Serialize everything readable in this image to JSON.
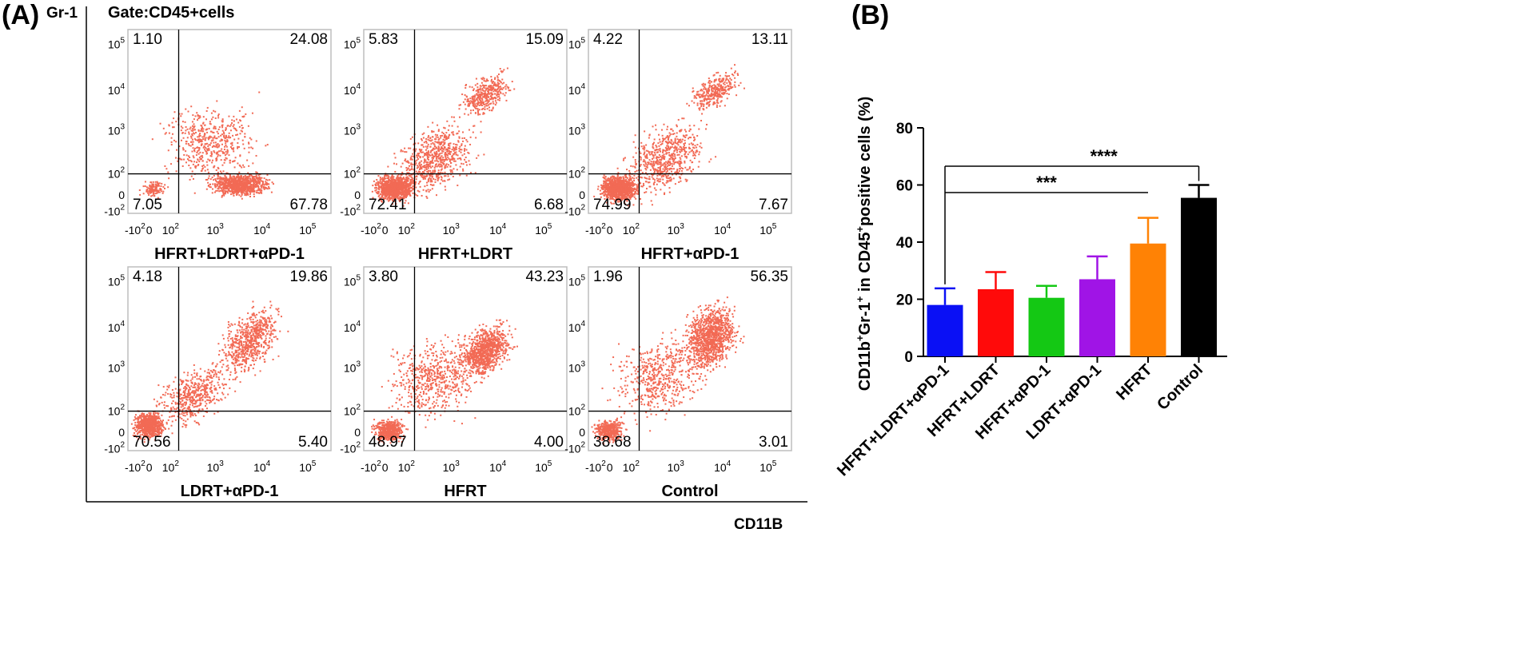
{
  "chart_data": [
    {
      "type": "scatter",
      "panel_label": "(A)",
      "gate_text": "Gate:CD45+cells",
      "ylabel": "Gr-1",
      "xlabel": "CD11B",
      "x_tick_labels": [
        "-10",
        "0",
        "10",
        "10",
        "10",
        "10"
      ],
      "x_tick_exps": [
        "2",
        "",
        "2",
        "3",
        "4",
        "5"
      ],
      "y_tick_labels": [
        "-10",
        "0",
        "10",
        "10",
        "10",
        "10"
      ],
      "y_tick_exps": [
        "2",
        "",
        "2",
        "3",
        "4",
        "5"
      ],
      "plots": [
        {
          "title": "HFRT+LDRT+αPD-1",
          "quadrants": {
            "tl": "1.10",
            "tr": "24.08",
            "bl": "7.05",
            "br": "67.78"
          }
        },
        {
          "title": "HFRT+LDRT",
          "quadrants": {
            "tl": "5.83",
            "tr": "15.09",
            "bl": "72.41",
            "br": "6.68"
          }
        },
        {
          "title": "HFRT+αPD-1",
          "quadrants": {
            "tl": "4.22",
            "tr": "13.11",
            "bl": "74.99",
            "br": "7.67"
          }
        },
        {
          "title": "LDRT+αPD-1",
          "quadrants": {
            "tl": "4.18",
            "tr": "19.86",
            "bl": "70.56",
            "br": "5.40"
          }
        },
        {
          "title": "HFRT",
          "quadrants": {
            "tl": "3.80",
            "tr": "43.23",
            "bl": "48.97",
            "br": "4.00"
          }
        },
        {
          "title": "Control",
          "quadrants": {
            "tl": "1.96",
            "tr": "56.35",
            "bl": "38.68",
            "br": "3.01"
          }
        }
      ],
      "point_color": "#f26a55"
    },
    {
      "type": "bar",
      "panel_label": "(B)",
      "ylabel_main": "CD11b",
      "ylabel_sup1": "+",
      "ylabel_mid": "Gr-1",
      "ylabel_sup2": "+",
      "ylabel_in": " in CD45",
      "ylabel_sup3": "+",
      "ylabel_tail": "positive cells (%)",
      "categories": [
        "HFRT+LDRT+αPD-1",
        "HFRT+LDRT",
        "HFRT+αPD-1",
        "LDRT+αPD-1",
        "HFRT",
        "Control"
      ],
      "values": [
        18,
        23.5,
        20.5,
        27,
        39.5,
        55.5
      ],
      "errors": [
        5.8,
        6,
        4.2,
        8,
        9,
        4.5
      ],
      "colors": [
        "#0a10f5",
        "#ff0a0a",
        "#14c814",
        "#a014e6",
        "#ff8205",
        "#000000"
      ],
      "ylim": [
        0,
        80
      ],
      "yticks": [
        "0",
        "20",
        "40",
        "60",
        "80"
      ],
      "significance": [
        {
          "from": 0,
          "to": 4,
          "label": "***"
        },
        {
          "from": 0,
          "to": 5,
          "label": "****"
        }
      ]
    }
  ]
}
